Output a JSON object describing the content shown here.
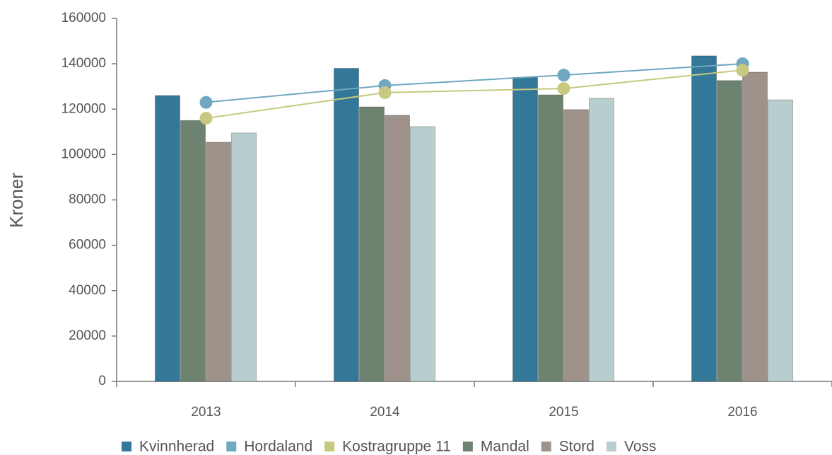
{
  "chart_data": {
    "type": "bar",
    "y_label": "Kroner",
    "categories": [
      "2013",
      "2014",
      "2015",
      "2016"
    ],
    "ylim": [
      0,
      160000
    ],
    "yticks": [
      0,
      20000,
      40000,
      60000,
      80000,
      100000,
      120000,
      140000,
      160000
    ],
    "grid": false,
    "series": [
      {
        "name": "Kvinnherad",
        "type": "bar",
        "color": "#337799",
        "values": [
          126000,
          138000,
          134000,
          143500
        ]
      },
      {
        "name": "Hordaland",
        "type": "line",
        "color": "#6fa8c0",
        "values": [
          123000,
          130400,
          135000,
          140000
        ]
      },
      {
        "name": "Kostragruppe 11",
        "type": "line",
        "color": "#c8c880",
        "values": [
          116000,
          127300,
          129100,
          137200
        ]
      },
      {
        "name": "Mandal",
        "type": "bar",
        "color": "#6e8270",
        "values": [
          115000,
          121000,
          126300,
          132600
        ]
      },
      {
        "name": "Stord",
        "type": "bar",
        "color": "#9e928a",
        "values": [
          105400,
          117300,
          119800,
          136300
        ]
      },
      {
        "name": "Voss",
        "type": "bar",
        "color": "#b8cece",
        "values": [
          109500,
          112300,
          124800,
          124100
        ]
      }
    ]
  }
}
